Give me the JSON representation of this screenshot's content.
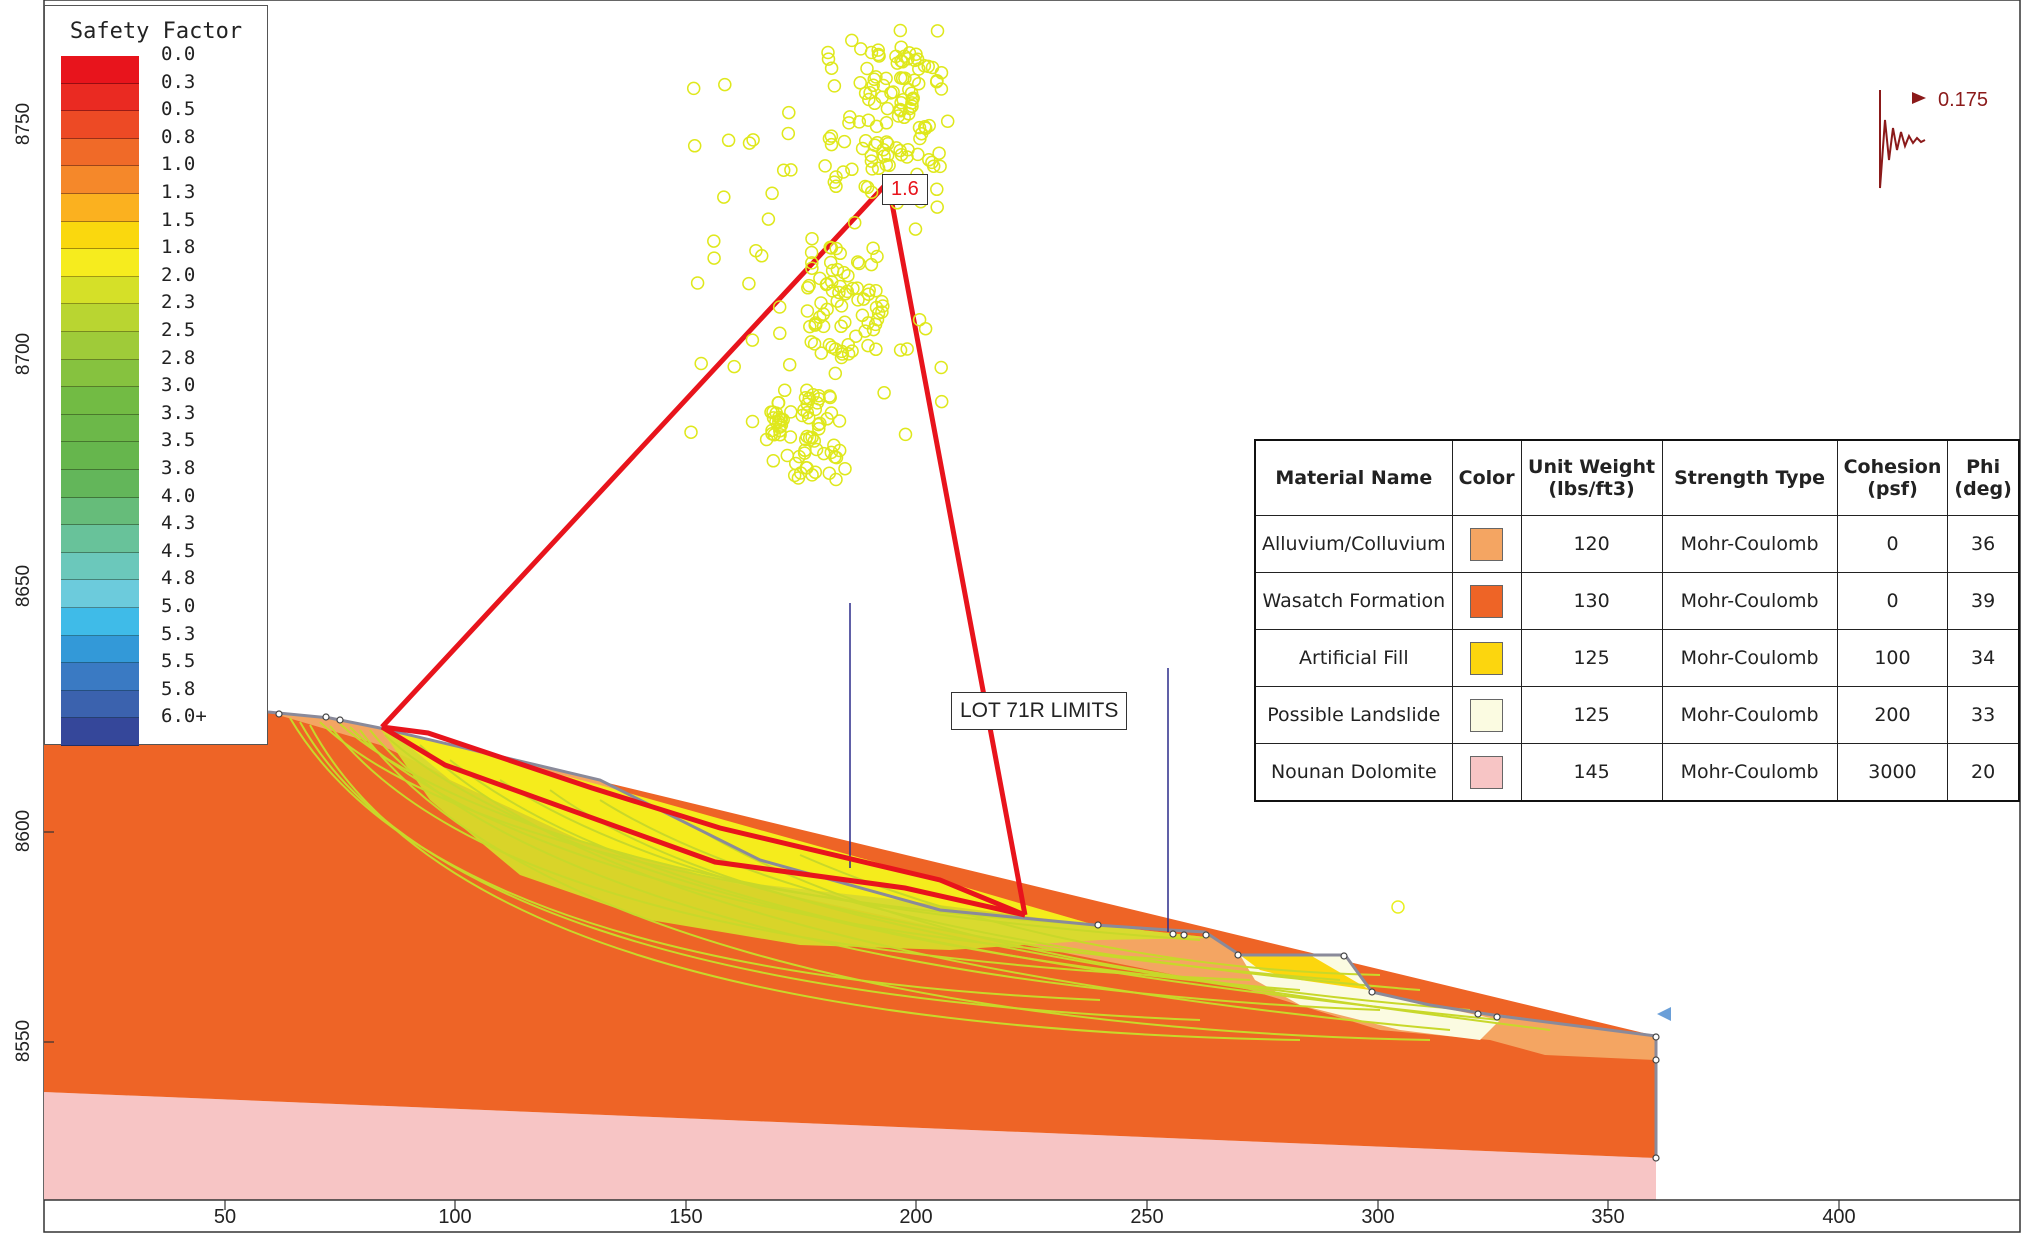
{
  "legend": {
    "title": "Safety Factor",
    "entries": [
      {
        "label": "0.0",
        "color": "#e8141c"
      },
      {
        "label": "0.3",
        "color": "#ea2a22"
      },
      {
        "label": "0.5",
        "color": "#ed4a25"
      },
      {
        "label": "0.8",
        "color": "#f06a28"
      },
      {
        "label": "1.0",
        "color": "#f5882a"
      },
      {
        "label": "1.3",
        "color": "#fbb11f"
      },
      {
        "label": "1.5",
        "color": "#fad80e"
      },
      {
        "label": "1.8",
        "color": "#f6ec1e"
      },
      {
        "label": "2.0",
        "color": "#d5e028"
      },
      {
        "label": "2.3",
        "color": "#b9d531"
      },
      {
        "label": "2.5",
        "color": "#9fcb39"
      },
      {
        "label": "2.8",
        "color": "#86c23f"
      },
      {
        "label": "3.0",
        "color": "#72bb44"
      },
      {
        "label": "3.3",
        "color": "#6cb849"
      },
      {
        "label": "3.5",
        "color": "#66b64d"
      },
      {
        "label": "3.8",
        "color": "#63b65a"
      },
      {
        "label": "4.0",
        "color": "#66bc7a"
      },
      {
        "label": "4.3",
        "color": "#68c29a"
      },
      {
        "label": "4.5",
        "color": "#6bc8bb"
      },
      {
        "label": "4.8",
        "color": "#6ccbdc"
      },
      {
        "label": "5.0",
        "color": "#3fbbe8"
      },
      {
        "label": "5.3",
        "color": "#3399d8"
      },
      {
        "label": "5.5",
        "color": "#3a7ac3"
      },
      {
        "label": "5.8",
        "color": "#3b62ae"
      },
      {
        "label": "6.0+",
        "color": "#35479a"
      }
    ]
  },
  "materials": {
    "headers": [
      "Material Name",
      "Color",
      "Unit Weight (lbs/ft3)",
      "Strength Type",
      "Cohesion (psf)",
      "Phi (deg)"
    ],
    "rows": [
      {
        "name": "Alluvium/Colluvium",
        "color": "#f4a562",
        "unit_weight": "120",
        "strength": "Mohr-Coulomb",
        "cohesion": "0",
        "phi": "36"
      },
      {
        "name": "Wasatch Formation",
        "color": "#ee6426",
        "unit_weight": "130",
        "strength": "Mohr-Coulomb",
        "cohesion": "0",
        "phi": "39"
      },
      {
        "name": "Artificial Fill",
        "color": "#fcd60e",
        "unit_weight": "125",
        "strength": "Mohr-Coulomb",
        "cohesion": "100",
        "phi": "34"
      },
      {
        "name": "Possible Landslide",
        "color": "#fbfbe1",
        "unit_weight": "125",
        "strength": "Mohr-Coulomb",
        "cohesion": "200",
        "phi": "33"
      },
      {
        "name": "Nounan Dolomite",
        "color": "#f7c5c5",
        "unit_weight": "145",
        "strength": "Mohr-Coulomb",
        "cohesion": "3000",
        "phi": "20"
      }
    ]
  },
  "annotations": {
    "safety_factor": "1.6",
    "lot_label": "LOT 71R LIMITS",
    "seismic_coefficient": "0.175"
  },
  "axes": {
    "x_ticks": [
      "50",
      "100",
      "150",
      "200",
      "250",
      "300",
      "350",
      "400"
    ],
    "y_ticks": [
      "8550",
      "8600",
      "8650",
      "8700",
      "8750"
    ]
  }
}
